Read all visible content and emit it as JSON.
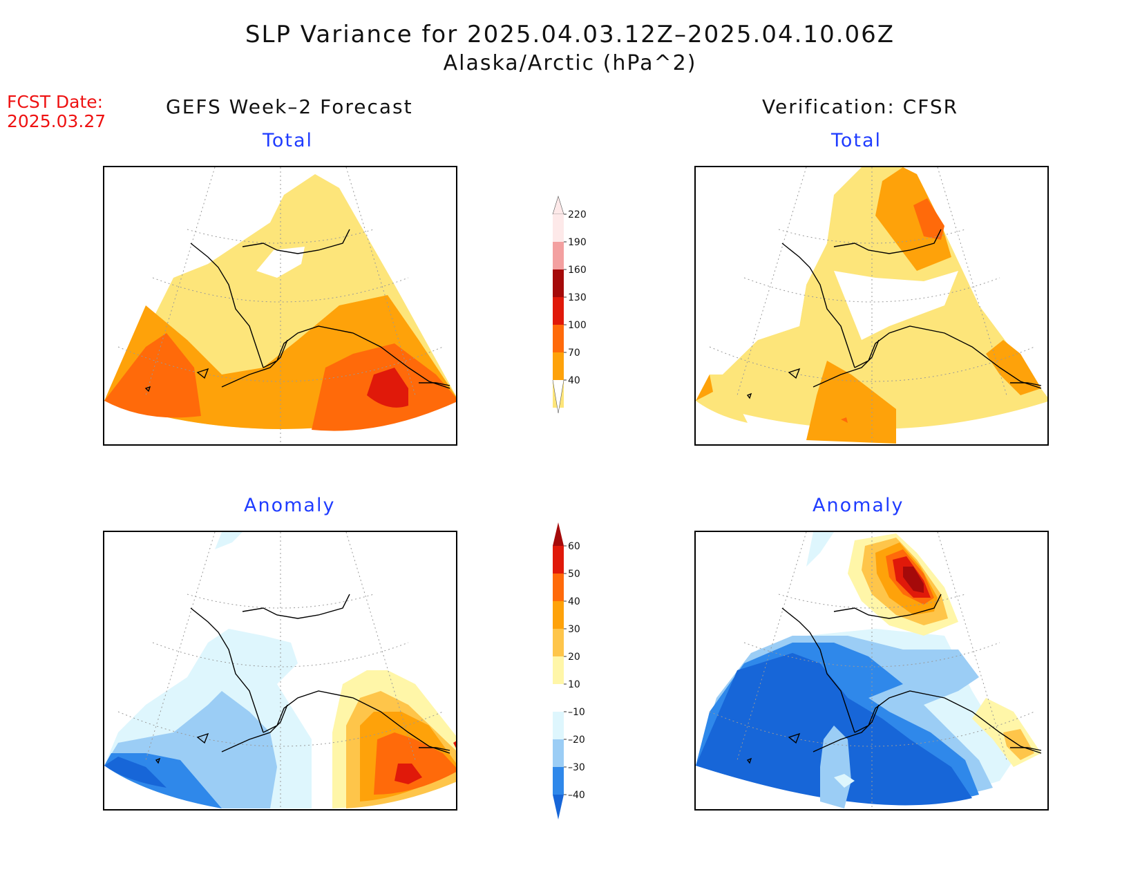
{
  "header": {
    "title": "SLP Variance for 2025.04.03.12Z–2025.04.10.06Z",
    "subtitle": "Alaska/Arctic (hPa^2)",
    "fcst_label": "FCST Date:",
    "fcst_date": "2025.03.27"
  },
  "columns": {
    "forecast": "GEFS Week–2 Forecast",
    "verification": "Verification: CFSR"
  },
  "panels": {
    "forecast_total": "Total",
    "verification_total": "Total",
    "forecast_anomaly": "Anomaly",
    "verification_anomaly": "Anomaly"
  },
  "colorbars": {
    "total": {
      "levels": [
        "40",
        "70",
        "100",
        "130",
        "160",
        "190",
        "220"
      ],
      "colors": [
        "#fde57a",
        "#fea20a",
        "#ff6a0a",
        "#e0190a",
        "#a50a0a",
        "#f3a0a0",
        "#fde9e9"
      ]
    },
    "anomaly": {
      "levels": [
        "–40",
        "–30",
        "–20",
        "–10",
        "10",
        "20",
        "30",
        "40",
        "50",
        "60"
      ],
      "colors": [
        "#1766d8",
        "#2f88ea",
        "#9bcdf5",
        "#def6fd",
        "#ffffff",
        "#fff6a8",
        "#fec54a",
        "#fea20a",
        "#ff6a0a",
        "#e0190a",
        "#a50a0a"
      ]
    }
  }
}
